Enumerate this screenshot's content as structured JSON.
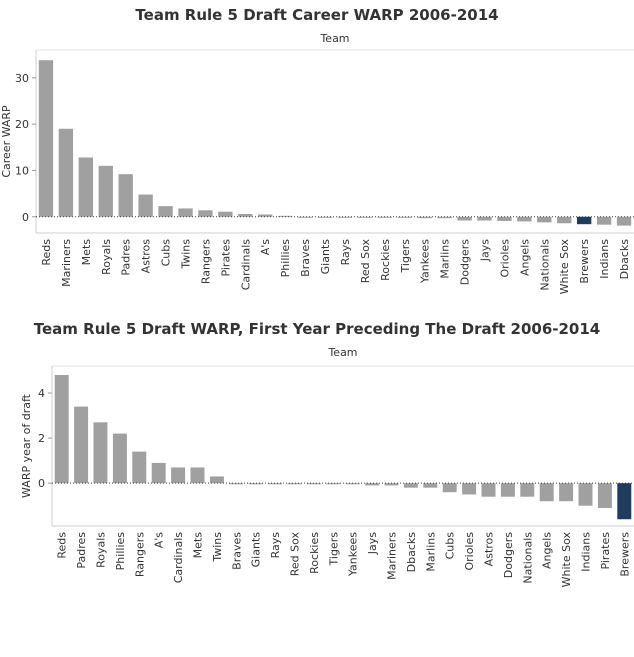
{
  "chart_data": [
    {
      "type": "bar",
      "title": "Team Rule 5 Draft Career WARP 2006-2014",
      "xlabel": "Team",
      "ylabel": "Career WARP",
      "ylim": [
        -3.5,
        36
      ],
      "yticks": [
        0,
        10,
        20,
        30
      ],
      "grid": false,
      "legend": "none",
      "categories": [
        "Reds",
        "Mariners",
        "Mets",
        "Royals",
        "Padres",
        "Astros",
        "Cubs",
        "Twins",
        "Rangers",
        "Pirates",
        "Cardinals",
        "A's",
        "Phillies",
        "Braves",
        "Giants",
        "Rays",
        "Red Sox",
        "Rockies",
        "Tigers",
        "Yankees",
        "Marlins",
        "Dodgers",
        "Jays",
        "Orioles",
        "Angels",
        "Nationals",
        "White Sox",
        "Brewers",
        "Indians",
        "Dbacks"
      ],
      "values": [
        33.8,
        19.0,
        12.8,
        11.0,
        9.2,
        4.8,
        2.3,
        1.8,
        1.4,
        1.1,
        0.6,
        0.5,
        0.2,
        -0.2,
        -0.2,
        -0.2,
        -0.2,
        -0.2,
        -0.2,
        -0.3,
        -0.3,
        -0.8,
        -0.8,
        -0.9,
        -1.0,
        -1.2,
        -1.4,
        -1.6,
        -1.7,
        -1.9
      ],
      "highlight": "Brewers",
      "colors": {
        "bar": "#a0a0a0",
        "highlight": "#1f3b5e"
      }
    },
    {
      "type": "bar",
      "title": "Team Rule 5 Draft WARP, First Year Preceding The Draft 2006-2014",
      "xlabel": "Team",
      "ylabel": "WARP year of draft",
      "ylim": [
        -1.9,
        5.2
      ],
      "yticks": [
        0,
        2,
        4
      ],
      "grid": false,
      "legend": "none",
      "categories": [
        "Reds",
        "Padres",
        "Royals",
        "Phillies",
        "Rangers",
        "A's",
        "Cardinals",
        "Mets",
        "Twins",
        "Braves",
        "Giants",
        "Rays",
        "Red Sox",
        "Rockies",
        "Tigers",
        "Yankees",
        "Jays",
        "Mariners",
        "Dbacks",
        "Marlins",
        "Cubs",
        "Orioles",
        "Astros",
        "Dodgers",
        "Nationals",
        "Angels",
        "White Sox",
        "Indians",
        "Pirates",
        "Brewers"
      ],
      "values": [
        4.8,
        3.4,
        2.7,
        2.2,
        1.4,
        0.9,
        0.7,
        0.7,
        0.3,
        -0.05,
        -0.05,
        -0.05,
        -0.05,
        -0.05,
        -0.05,
        -0.05,
        -0.1,
        -0.1,
        -0.2,
        -0.2,
        -0.4,
        -0.5,
        -0.6,
        -0.6,
        -0.6,
        -0.8,
        -0.8,
        -1.0,
        -1.1,
        -1.6
      ],
      "highlight": "Brewers",
      "colors": {
        "bar": "#a0a0a0",
        "highlight": "#1f3b5e"
      }
    }
  ]
}
